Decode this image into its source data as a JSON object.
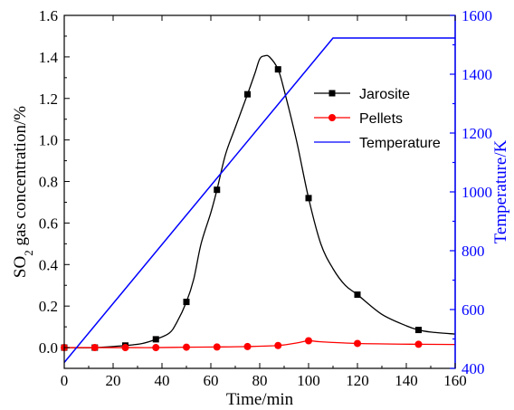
{
  "chart_data": {
    "type": "line",
    "xlabel": "Time/min",
    "ylabel_left": {
      "main": "SO",
      "sub": "2",
      "rest": " gas concentration/%"
    },
    "ylabel_right": "Temperature/K",
    "xlim": [
      0,
      160
    ],
    "ylim_left": [
      -0.1,
      1.6
    ],
    "ylim_right": [
      400,
      1600
    ],
    "x_ticks": [
      "0",
      "20",
      "40",
      "60",
      "80",
      "100",
      "120",
      "140",
      "160"
    ],
    "y_left_ticks": [
      "0.0",
      "0.2",
      "0.4",
      "0.6",
      "0.8",
      "1.0",
      "1.2",
      "1.4",
      "1.6"
    ],
    "y_right_ticks": [
      "400",
      "600",
      "800",
      "1000",
      "1200",
      "1400",
      "1600"
    ],
    "legend_position": "top-right",
    "series": [
      {
        "name": "Jarosite",
        "axis": "left",
        "color": "#000000",
        "marker": "square",
        "curve": [
          [
            0,
            0.0
          ],
          [
            12,
            0.0
          ],
          [
            25,
            0.01
          ],
          [
            32,
            0.02
          ],
          [
            37.5,
            0.04
          ],
          [
            43,
            0.07
          ],
          [
            46,
            0.12
          ],
          [
            50,
            0.22
          ],
          [
            53,
            0.33
          ],
          [
            56,
            0.5
          ],
          [
            60,
            0.65
          ],
          [
            62.5,
            0.76
          ],
          [
            66,
            0.93
          ],
          [
            70,
            1.06
          ],
          [
            75,
            1.22
          ],
          [
            78,
            1.32
          ],
          [
            80,
            1.39
          ],
          [
            82,
            1.405
          ],
          [
            84,
            1.4
          ],
          [
            87.5,
            1.34
          ],
          [
            90,
            1.24
          ],
          [
            95,
            1.0
          ],
          [
            100,
            0.72
          ],
          [
            105,
            0.5
          ],
          [
            110,
            0.38
          ],
          [
            115,
            0.3
          ],
          [
            120,
            0.255
          ],
          [
            130,
            0.16
          ],
          [
            140,
            0.105
          ],
          [
            145,
            0.085
          ],
          [
            150,
            0.075
          ],
          [
            160,
            0.065
          ]
        ],
        "markers": [
          [
            0,
            0.0
          ],
          [
            12.5,
            0.0
          ],
          [
            25,
            0.01
          ],
          [
            37.5,
            0.04
          ],
          [
            50,
            0.22
          ],
          [
            62.5,
            0.76
          ],
          [
            75,
            1.22
          ],
          [
            87.5,
            1.34
          ],
          [
            100,
            0.72
          ],
          [
            120,
            0.255
          ],
          [
            145,
            0.085
          ]
        ]
      },
      {
        "name": "Pellets",
        "axis": "left",
        "color": "#ff0000",
        "marker": "circle",
        "curve": [
          [
            0,
            0.0
          ],
          [
            12.5,
            0.0
          ],
          [
            25,
            0.0
          ],
          [
            37.5,
            0.0
          ],
          [
            50,
            0.002
          ],
          [
            62.5,
            0.003
          ],
          [
            75,
            0.005
          ],
          [
            87.5,
            0.01
          ],
          [
            95,
            0.022
          ],
          [
            100,
            0.033
          ],
          [
            105,
            0.028
          ],
          [
            120,
            0.02
          ],
          [
            145,
            0.016
          ],
          [
            160,
            0.015
          ]
        ],
        "markers": [
          [
            0,
            0.0
          ],
          [
            12.5,
            0.0
          ],
          [
            25,
            0.0
          ],
          [
            37.5,
            0.0
          ],
          [
            50,
            0.002
          ],
          [
            62.5,
            0.003
          ],
          [
            75,
            0.005
          ],
          [
            87.5,
            0.01
          ],
          [
            100,
            0.033
          ],
          [
            120,
            0.02
          ],
          [
            145,
            0.016
          ]
        ]
      },
      {
        "name": "Temperature",
        "axis": "right",
        "color": "#0000ff",
        "marker": "none",
        "curve": [
          [
            0,
            420
          ],
          [
            110,
            1523
          ],
          [
            160,
            1523
          ]
        ],
        "markers": []
      }
    ]
  }
}
